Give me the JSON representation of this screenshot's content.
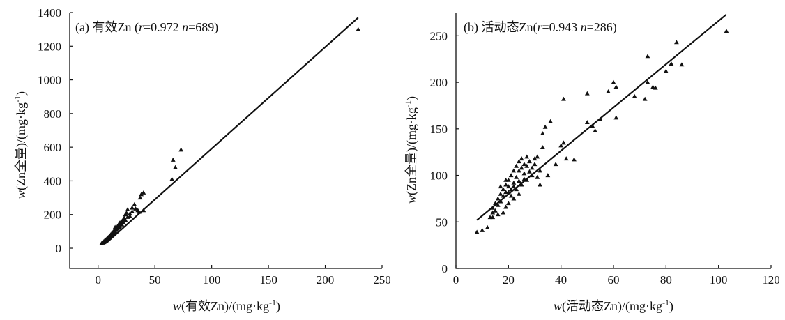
{
  "chart_data": [
    {
      "type": "scatter",
      "panel_title": "(a) 有效Zn (r=0.972 n=689)",
      "title_parts": {
        "prefix": "(a) 有效Zn (",
        "r_sym": "r",
        "r_val": "=0.972 ",
        "n_sym": "n",
        "n_val": "=689)"
      },
      "xlabel_parts": {
        "w": "w",
        "text": "(有效Zn)/(mg·kg",
        "exp": "-1",
        "close": ")"
      },
      "ylabel_parts": {
        "w": "w",
        "text": "(Zn全量)/(mg·kg",
        "exp": "-1",
        "close": ")"
      },
      "xlim": [
        -25,
        250
      ],
      "ylim": [
        -120,
        1400
      ],
      "xticks": [
        0,
        50,
        100,
        150,
        200,
        250
      ],
      "yticks": [
        0,
        200,
        400,
        600,
        800,
        1000,
        1200,
        1400
      ],
      "fit_line": {
        "x": [
          7,
          229
        ],
        "y": [
          30,
          1370
        ]
      },
      "points": [
        [
          3,
          28
        ],
        [
          4,
          32
        ],
        [
          5,
          35
        ],
        [
          5,
          40
        ],
        [
          6,
          42
        ],
        [
          6,
          48
        ],
        [
          7,
          45
        ],
        [
          7,
          52
        ],
        [
          8,
          55
        ],
        [
          8,
          60
        ],
        [
          9,
          58
        ],
        [
          9,
          66
        ],
        [
          10,
          62
        ],
        [
          10,
          72
        ],
        [
          11,
          70
        ],
        [
          11,
          80
        ],
        [
          12,
          75
        ],
        [
          12,
          88
        ],
        [
          13,
          85
        ],
        [
          13,
          95
        ],
        [
          14,
          90
        ],
        [
          14,
          105
        ],
        [
          15,
          100
        ],
        [
          15,
          112
        ],
        [
          16,
          108
        ],
        [
          16,
          120
        ],
        [
          17,
          118
        ],
        [
          17,
          130
        ],
        [
          18,
          125
        ],
        [
          18,
          140
        ],
        [
          19,
          132
        ],
        [
          20,
          148
        ],
        [
          20,
          155
        ],
        [
          21,
          160
        ],
        [
          22,
          170
        ],
        [
          23,
          180
        ],
        [
          24,
          200
        ],
        [
          25,
          210
        ],
        [
          26,
          230
        ],
        [
          28,
          190
        ],
        [
          30,
          240
        ],
        [
          32,
          260
        ],
        [
          35,
          225
        ],
        [
          37,
          300
        ],
        [
          38,
          320
        ],
        [
          40,
          225
        ],
        [
          40,
          330
        ],
        [
          65,
          410
        ],
        [
          66,
          525
        ],
        [
          68,
          480
        ],
        [
          73,
          585
        ],
        [
          229,
          1300
        ],
        [
          6,
          38
        ],
        [
          8,
          50
        ],
        [
          10,
          66
        ],
        [
          12,
          80
        ],
        [
          14,
          95
        ],
        [
          16,
          115
        ],
        [
          18,
          128
        ],
        [
          20,
          145
        ],
        [
          22,
          155
        ],
        [
          24,
          168
        ],
        [
          26,
          185
        ],
        [
          28,
          205
        ],
        [
          30,
          218
        ],
        [
          33,
          235
        ],
        [
          36,
          215
        ],
        [
          15,
          125
        ],
        [
          19,
          150
        ],
        [
          21,
          140
        ]
      ]
    },
    {
      "type": "scatter",
      "panel_title": "(b) 活动态Zn(r=0.943 n=286)",
      "title_parts": {
        "prefix": "(b) 活动态Zn(",
        "r_sym": "r",
        "r_val": "=0.943 ",
        "n_sym": "n",
        "n_val": "=286)"
      },
      "xlabel_parts": {
        "w": "w",
        "text": "(活动态Zn)/(mg·kg",
        "exp": "-1",
        "close": ")"
      },
      "ylabel_parts": {
        "w": "w",
        "text": "(Zn全量)/(mg·kg",
        "exp": "-1",
        "close": ")"
      },
      "xlim": [
        0,
        120
      ],
      "ylim": [
        0,
        275
      ],
      "xticks": [
        0,
        20,
        40,
        60,
        80,
        100,
        120
      ],
      "yticks": [
        0,
        50,
        100,
        150,
        200,
        250
      ],
      "fit_line": {
        "x": [
          8,
          103
        ],
        "y": [
          52,
          273
        ]
      },
      "points": [
        [
          8,
          39
        ],
        [
          10,
          41
        ],
        [
          12,
          44
        ],
        [
          13,
          55
        ],
        [
          14,
          60
        ],
        [
          14,
          65
        ],
        [
          15,
          62
        ],
        [
          15,
          70
        ],
        [
          16,
          68
        ],
        [
          16,
          75
        ],
        [
          17,
          72
        ],
        [
          17,
          80
        ],
        [
          18,
          78
        ],
        [
          18,
          85
        ],
        [
          19,
          82
        ],
        [
          19,
          90
        ],
        [
          20,
          88
        ],
        [
          20,
          95
        ],
        [
          21,
          85
        ],
        [
          21,
          100
        ],
        [
          22,
          92
        ],
        [
          22,
          105
        ],
        [
          23,
          98
        ],
        [
          23,
          110
        ],
        [
          24,
          105
        ],
        [
          24,
          115
        ],
        [
          25,
          108
        ],
        [
          25,
          118
        ],
        [
          26,
          102
        ],
        [
          26,
          112
        ],
        [
          27,
          110
        ],
        [
          27,
          120
        ],
        [
          28,
          115
        ],
        [
          29,
          108
        ],
        [
          30,
          118
        ],
        [
          31,
          98
        ],
        [
          32,
          105
        ],
        [
          33,
          130
        ],
        [
          33,
          145
        ],
        [
          34,
          152
        ],
        [
          35,
          100
        ],
        [
          36,
          158
        ],
        [
          38,
          112
        ],
        [
          40,
          132
        ],
        [
          41,
          135
        ],
        [
          41,
          182
        ],
        [
          42,
          118
        ],
        [
          45,
          117
        ],
        [
          50,
          157
        ],
        [
          50,
          188
        ],
        [
          52,
          153
        ],
        [
          53,
          148
        ],
        [
          55,
          160
        ],
        [
          58,
          190
        ],
        [
          60,
          200
        ],
        [
          61,
          195
        ],
        [
          61,
          162
        ],
        [
          68,
          185
        ],
        [
          72,
          182
        ],
        [
          73,
          200
        ],
        [
          73,
          228
        ],
        [
          75,
          195
        ],
        [
          76,
          194
        ],
        [
          80,
          212
        ],
        [
          82,
          220
        ],
        [
          84,
          243
        ],
        [
          86,
          219
        ],
        [
          103,
          255
        ],
        [
          18,
          60
        ],
        [
          20,
          70
        ],
        [
          22,
          75
        ],
        [
          24,
          80
        ],
        [
          16,
          58
        ],
        [
          14,
          55
        ],
        [
          19,
          66
        ],
        [
          21,
          78
        ],
        [
          23,
          85
        ],
        [
          25,
          90
        ],
        [
          27,
          95
        ],
        [
          29,
          100
        ],
        [
          17,
          88
        ],
        [
          19,
          95
        ],
        [
          22,
          88
        ],
        [
          26,
          96
        ],
        [
          28,
          104
        ],
        [
          30,
          112
        ],
        [
          31,
          120
        ],
        [
          32,
          90
        ],
        [
          24,
          94
        ],
        [
          20,
          82
        ]
      ]
    }
  ]
}
